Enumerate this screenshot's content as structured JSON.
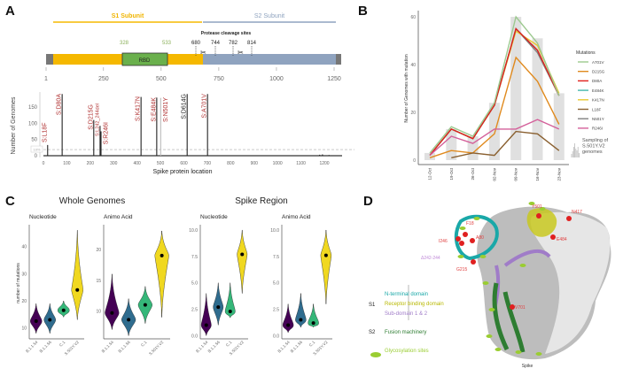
{
  "panel_labels": [
    "A",
    "B",
    "C",
    "D"
  ],
  "chart_data": [
    {
      "panel": "A-domains",
      "type": "diagram",
      "s1_label": "S1 Subunit",
      "s2_label": "S2 Subunit",
      "rbd_label": "RBD",
      "rbd_start": "328",
      "rbd_end": "533",
      "cleavage_title": "Protease cleavage sites",
      "cleavage_sites": [
        "680",
        "744",
        "782",
        "814"
      ],
      "axis_ticks": [
        "1",
        "250",
        "500",
        "750",
        "1000",
        "1250"
      ],
      "colors": {
        "s1": "#f5b800",
        "s2": "#8fa3bf",
        "rbd": "#6ab04c"
      }
    },
    {
      "panel": "A-mutations",
      "type": "bar",
      "xlabel": "Spike protein location",
      "ylabel": "Number of Genomes",
      "xlim": [
        0,
        1270
      ],
      "ylim": [
        0,
        195
      ],
      "xticks": [
        "0",
        "100",
        "200",
        "300",
        "400",
        "500",
        "600",
        "700",
        "800",
        "900",
        "1000",
        "1100",
        "1200"
      ],
      "yticks": [
        "0",
        "50",
        "100",
        "150"
      ],
      "threshold_label": "10%",
      "threshold_value": 19,
      "bars": [
        {
          "pos": 18,
          "value": 33,
          "label": "S:L18F",
          "color": "#b03030"
        },
        {
          "pos": 80,
          "value": 190,
          "label": "S:D80A",
          "color": "#b03030"
        },
        {
          "pos": 215,
          "value": 110,
          "label": "S:D215G",
          "color": "#b03030"
        },
        {
          "pos": 242,
          "value": 92,
          "label": "S:L242_244del",
          "color": "#b03030"
        },
        {
          "pos": 246,
          "value": 75,
          "label": "S:R246I",
          "color": "#b03030"
        },
        {
          "pos": 417,
          "value": 181,
          "label": "S:K417N",
          "color": "#b03030"
        },
        {
          "pos": 484,
          "value": 179,
          "label": "S:E484K",
          "color": "#b03030"
        },
        {
          "pos": 501,
          "value": 178,
          "label": "S:N501Y",
          "color": "#b03030"
        },
        {
          "pos": 614,
          "value": 190,
          "label": "S:D614G",
          "color": "#222222"
        },
        {
          "pos": 701,
          "value": 190,
          "label": "S:A701V",
          "color": "#b03030"
        },
        {
          "pos": 1180,
          "value": 3,
          "label": ""
        },
        {
          "pos": 1192,
          "value": 4,
          "label": ""
        },
        {
          "pos": 1220,
          "value": 2,
          "label": ""
        }
      ]
    },
    {
      "panel": "B",
      "type": "line",
      "ylabel": "Number of Genomes with mutation",
      "categories": [
        "12-Oct",
        "19-Oct",
        "26-Oct",
        "02-Nov",
        "09-Nov",
        "16-Nov",
        "23-Nov"
      ],
      "ylim": [
        0,
        63
      ],
      "yticks": [
        "0",
        "20",
        "40",
        "60"
      ],
      "legend_title": "Mutations",
      "legend_position": "right",
      "sampling_label": "Sampling of S.501Y.V2 genomes",
      "sampling": [
        3,
        13,
        10,
        24,
        60,
        51,
        28
      ],
      "series": [
        {
          "name": "A701V",
          "color": "#9cc98f",
          "values": [
            3,
            14,
            10,
            24,
            60,
            49,
            27
          ]
        },
        {
          "name": "D215G",
          "color": "#e08a1e",
          "values": [
            1,
            4,
            3,
            11,
            43,
            33,
            15
          ]
        },
        {
          "name": "D80A",
          "color": "#e0201c",
          "values": [
            2,
            13,
            9,
            23,
            55,
            46,
            27
          ]
        },
        {
          "name": "E484K",
          "color": "#45b8ac",
          "values": [
            2,
            13,
            9,
            23,
            55,
            46,
            27
          ]
        },
        {
          "name": "K417N",
          "color": "#e8c830",
          "values": [
            2,
            13,
            9,
            23,
            54,
            48,
            28
          ]
        },
        {
          "name": "L18F",
          "color": "#8a6030",
          "values": [
            null,
            1,
            3,
            2,
            12,
            11,
            4
          ]
        },
        {
          "name": "N501Y",
          "color": "#808080",
          "values": [
            2,
            13,
            9,
            23,
            55,
            45,
            27
          ]
        },
        {
          "name": "R246I",
          "color": "#d4609a",
          "values": [
            2,
            10,
            7,
            13,
            13,
            17,
            13
          ]
        }
      ]
    },
    {
      "panel": "C",
      "type": "violin",
      "group_titles": [
        "Whole Genomes",
        "Spike Region"
      ],
      "ylabel": "number of mutations",
      "categories": [
        "B.1.1.54",
        "B.1.1.56",
        "C.1",
        "S.501Y.V2"
      ],
      "colors": [
        "#440154",
        "#2f6c8e",
        "#35b779",
        "#f0d820"
      ],
      "subplots": [
        {
          "title": "Nucleotide",
          "group": 0,
          "ylim": [
            6,
            48
          ],
          "yticks": [
            "10",
            "20",
            "30",
            "40"
          ],
          "tickvals": [
            10,
            20,
            30,
            40
          ],
          "median": [
            12.5,
            13,
            16.5,
            24
          ],
          "min": [
            8,
            8,
            14,
            13
          ],
          "max": [
            19,
            19,
            20,
            46
          ]
        },
        {
          "title": "Animo Acid",
          "group": 0,
          "ylim": [
            5.5,
            24
          ],
          "yticks": [
            "10",
            "15",
            "20"
          ],
          "tickvals": [
            10,
            15,
            20
          ],
          "median": [
            9.7,
            8.6,
            11,
            19
          ],
          "min": [
            7,
            6,
            8,
            9
          ],
          "max": [
            16,
            12,
            14,
            23
          ]
        },
        {
          "title": "Nucleotide",
          "group": 1,
          "ylim": [
            -0.3,
            10.5
          ],
          "yticks": [
            "0.0",
            "2.5",
            "5.0",
            "7.5",
            "10.0"
          ],
          "tickvals": [
            0,
            2.5,
            5,
            7.5,
            10
          ],
          "median": [
            1,
            2.7,
            2.3,
            7.7
          ],
          "min": [
            0,
            1,
            1.7,
            4
          ],
          "max": [
            4,
            5,
            5,
            10
          ]
        },
        {
          "title": "Animo Acid",
          "group": 1,
          "ylim": [
            -0.3,
            10.5
          ],
          "yticks": [
            "0.0",
            "2.5",
            "5.0",
            "7.5",
            "10.0"
          ],
          "tickvals": [
            0,
            2.5,
            5,
            7.5,
            10
          ],
          "median": [
            1,
            1.5,
            1.2,
            7.6
          ],
          "min": [
            0.3,
            0.8,
            0.8,
            3
          ],
          "max": [
            3,
            4,
            3,
            10
          ]
        }
      ]
    }
  ],
  "panel_d": {
    "residue_labels": [
      "F18",
      "A80",
      "I246",
      "Δ242-244",
      "G215",
      "Y501",
      "N417",
      "E484",
      "V701"
    ],
    "legend": {
      "s1_label": "S1",
      "s2_label": "S2",
      "ntd": "N-terminal domain",
      "rbd": "Receptor binding domain",
      "sd": "Sub-domain 1 & 2",
      "fusion": "Fusion machinery",
      "glyco": "Glycosylation sites"
    },
    "caption": "Spike",
    "colors": {
      "ntd": "#1aa8a8",
      "rbd": "#b8b800",
      "sd": "#a07cc8",
      "fusion": "#2e7d32",
      "glyco": "#9acd32",
      "residue": "#e02020"
    }
  }
}
